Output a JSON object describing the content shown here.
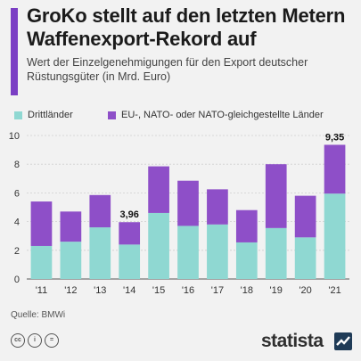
{
  "title": "GroKo stellt auf den letzten Metern Waffenexport-Rekord auf",
  "subtitle": "Wert der Einzelgenehmigungen für den Export deutscher Rüstungsgüter (in Mrd. Euro)",
  "source": "Quelle: BMWi",
  "brand": "statista",
  "icons": [
    "creative-commons-icon",
    "attribution-icon",
    "no-derivatives-icon"
  ],
  "colors": {
    "accent": "#7b3fc4",
    "drittlaender": "#8fd8d2",
    "eu_nato": "#8e4fc8"
  },
  "chart_data": {
    "type": "bar",
    "stacked": true,
    "categories": [
      "'11",
      "'12",
      "'13",
      "'14",
      "'15",
      "'16",
      "'17",
      "'18",
      "'19",
      "'20",
      "'21"
    ],
    "series": [
      {
        "name": "Drittländer",
        "values": [
          2.3,
          2.6,
          3.6,
          2.4,
          4.6,
          3.7,
          3.8,
          2.55,
          3.55,
          2.9,
          5.95
        ],
        "color": "#8fd8d2"
      },
      {
        "name": "EU-, NATO- oder NATO-gleichgestellte Länder",
        "values": [
          3.1,
          2.1,
          2.25,
          1.56,
          3.25,
          3.15,
          2.45,
          2.25,
          4.45,
          2.9,
          3.4
        ],
        "color": "#8e4fc8"
      }
    ],
    "data_labels": [
      {
        "category": "'14",
        "text": "3,96"
      },
      {
        "category": "'21",
        "text": "9,35"
      }
    ],
    "ylim": [
      0,
      10
    ],
    "yticks": [
      "0",
      "2",
      "4",
      "6",
      "8",
      "10"
    ],
    "ytick_values": [
      0,
      2,
      4,
      6,
      8,
      10
    ],
    "grid": true,
    "legend_position": "top"
  }
}
